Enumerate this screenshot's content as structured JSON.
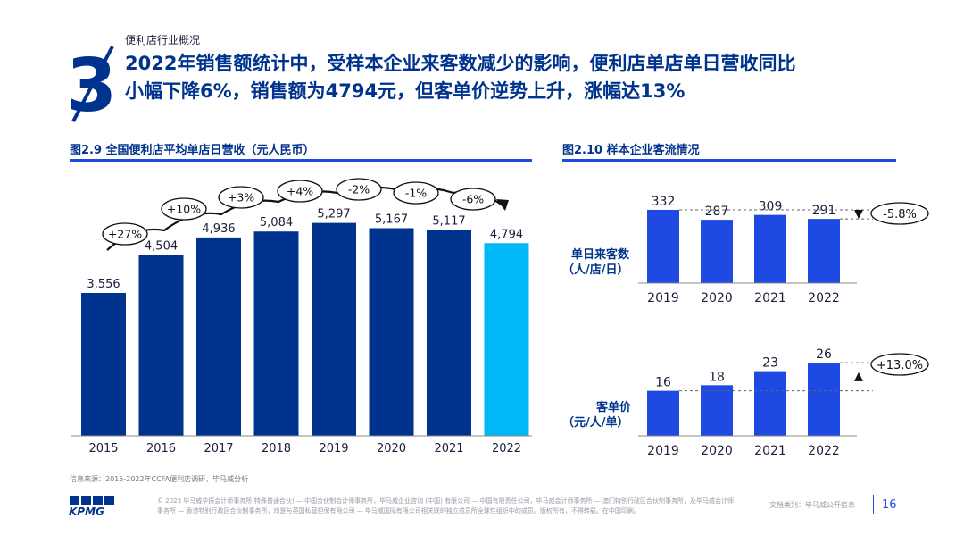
{
  "header": {
    "section_number": "3",
    "section_label": "便利店行业概况",
    "title_line1": "2022年销售额统计中，受样本企业来客数减少的影响，便利店单店单日营收同比",
    "title_line2": "小幅下降6%，销售额为4794元，但客单价逆势上升，涨幅达13%"
  },
  "colors": {
    "dark_blue": "#00338d",
    "cobalt": "#1e49e2",
    "light_blue": "#00b8f5",
    "text": "#1e1e3c"
  },
  "chart_data": [
    {
      "id": "fig29",
      "type": "bar",
      "title": "图2.9 全国便利店平均单店日营收（元人民币）",
      "categories": [
        "2015",
        "2016",
        "2017",
        "2018",
        "2019",
        "2020",
        "2021",
        "2022"
      ],
      "values": [
        3556,
        4504,
        4936,
        5084,
        5297,
        5167,
        5117,
        4794
      ],
      "value_labels": [
        "3,556",
        "4,504",
        "4,936",
        "5,084",
        "5,297",
        "5,167",
        "5,117",
        "4,794"
      ],
      "growth_labels": [
        "+27%",
        "+10%",
        "+3%",
        "+4%",
        "-2%",
        "-1%",
        "-6%"
      ],
      "highlight_color": "#00b8f5",
      "bar_color": "#00338d",
      "ylim": [
        0,
        6000
      ]
    },
    {
      "id": "fig210a",
      "type": "bar",
      "title": "图2.10 样本企业客流情况",
      "row_label_line1": "单日来客数",
      "row_label_line2": "（人/店/日）",
      "categories": [
        "2019",
        "2020",
        "2021",
        "2022"
      ],
      "values": [
        332,
        287,
        309,
        291
      ],
      "change_label": "-5.8%",
      "bar_color": "#1e49e2",
      "ylim": [
        0,
        340
      ]
    },
    {
      "id": "fig210b",
      "type": "bar",
      "row_label_line1": "客单价",
      "row_label_line2": "（元/人/单）",
      "categories": [
        "2019",
        "2020",
        "2021",
        "2022"
      ],
      "values": [
        16,
        18,
        23,
        26
      ],
      "change_label": "+13.0%",
      "bar_color": "#1e49e2",
      "ylim": [
        0,
        27
      ]
    }
  ],
  "source": "信息来源：2015-2022年CCFA便利店调研，毕马威分析",
  "footer": {
    "logo": "KPMG",
    "legal": "© 2023 毕马威华振会计师事务所(特殊普通合伙) — 中国合伙制会计师事务所，毕马威企业咨询 (中国) 有限公司 — 中国有限责任公司，毕马威会计师事务所 — 澳门特别行政区合伙制事务所，及毕马威会计师事务所 — 香港特别行政区合伙制事务所，均是与英国私营担保有限公司 — 毕马威国际有限公司相关联的独立成员所全球性组织中的成员。版权所有，不得转载。在中国印刷。",
    "doc_class": "文档类别：毕马威公开信息",
    "page": "16"
  }
}
